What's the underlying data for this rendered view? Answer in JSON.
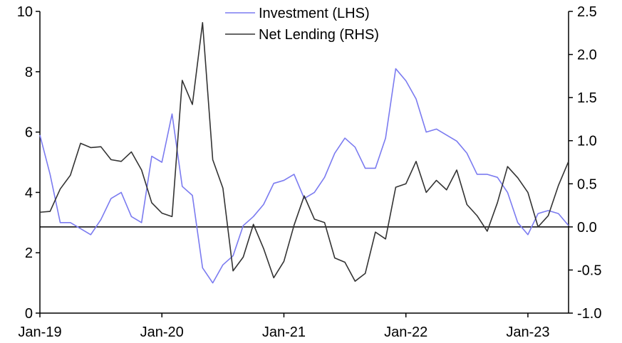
{
  "chart_data": {
    "type": "line",
    "title": "",
    "x": [
      "2019-01",
      "2019-02",
      "2019-03",
      "2019-04",
      "2019-05",
      "2019-06",
      "2019-07",
      "2019-08",
      "2019-09",
      "2019-10",
      "2019-11",
      "2019-12",
      "2020-01",
      "2020-02",
      "2020-03",
      "2020-04",
      "2020-05",
      "2020-06",
      "2020-07",
      "2020-08",
      "2020-09",
      "2020-10",
      "2020-11",
      "2020-12",
      "2021-01",
      "2021-02",
      "2021-03",
      "2021-04",
      "2021-05",
      "2021-06",
      "2021-07",
      "2021-08",
      "2021-09",
      "2021-10",
      "2021-11",
      "2021-12",
      "2022-01",
      "2022-02",
      "2022-03",
      "2022-04",
      "2022-05",
      "2022-06",
      "2022-07",
      "2022-08",
      "2022-09",
      "2022-10",
      "2022-11",
      "2022-12",
      "2023-01",
      "2023-02",
      "2023-03",
      "2023-04",
      "2023-05"
    ],
    "x_tick_labels": [
      "Jan-19",
      "Jan-20",
      "Jan-21",
      "Jan-22",
      "Jan-23"
    ],
    "x_tick_positions": [
      "2019-01",
      "2020-01",
      "2021-01",
      "2022-01",
      "2023-01"
    ],
    "y_left": {
      "ylim": [
        0,
        10
      ],
      "ticks": [
        0,
        2,
        4,
        6,
        8,
        10
      ],
      "tick_labels": [
        "0",
        "2",
        "4",
        "6",
        "8",
        "10"
      ]
    },
    "y_right": {
      "ylim": [
        -1.0,
        2.5
      ],
      "ticks": [
        -1.0,
        -0.5,
        0.0,
        0.5,
        1.0,
        1.5,
        2.0,
        2.5
      ],
      "tick_labels": [
        "-1.0",
        "-0.5",
        "0.0",
        "0.5",
        "1.0",
        "1.5",
        "2.0",
        "2.5"
      ]
    },
    "zero_line_rhs": 0.0,
    "legend_position": "top-center",
    "series": [
      {
        "name": "Investment (LHS)",
        "axis": "left",
        "color": "#7b7bf0",
        "values": [
          5.9,
          4.6,
          3.0,
          3.0,
          2.8,
          2.6,
          3.1,
          3.8,
          4.0,
          3.2,
          3.0,
          5.2,
          5.0,
          6.6,
          4.2,
          3.9,
          1.5,
          1.0,
          1.6,
          1.9,
          2.9,
          3.2,
          3.6,
          4.3,
          4.4,
          4.6,
          3.8,
          4.0,
          4.5,
          5.3,
          5.8,
          5.5,
          4.8,
          4.8,
          5.8,
          8.1,
          7.7,
          7.1,
          6.0,
          6.1,
          5.9,
          5.7,
          5.3,
          4.6,
          4.6,
          4.5,
          4.0,
          3.0,
          2.6,
          3.3,
          3.4,
          3.3,
          2.9
        ]
      },
      {
        "name": "Net Lending (RHS)",
        "axis": "right",
        "color": "#333333",
        "values": [
          0.17,
          0.18,
          0.44,
          0.6,
          0.97,
          0.92,
          0.93,
          0.78,
          0.76,
          0.87,
          0.66,
          0.28,
          0.16,
          0.12,
          1.7,
          1.42,
          2.37,
          0.78,
          0.45,
          -0.51,
          -0.35,
          0.03,
          -0.25,
          -0.59,
          -0.4,
          0.02,
          0.36,
          0.09,
          0.05,
          -0.36,
          -0.41,
          -0.63,
          -0.54,
          -0.06,
          -0.14,
          0.46,
          0.5,
          0.76,
          0.4,
          0.54,
          0.43,
          0.66,
          0.26,
          0.13,
          -0.05,
          0.28,
          0.7,
          0.57,
          0.4,
          0.0,
          0.13,
          0.48,
          0.76
        ]
      }
    ]
  }
}
